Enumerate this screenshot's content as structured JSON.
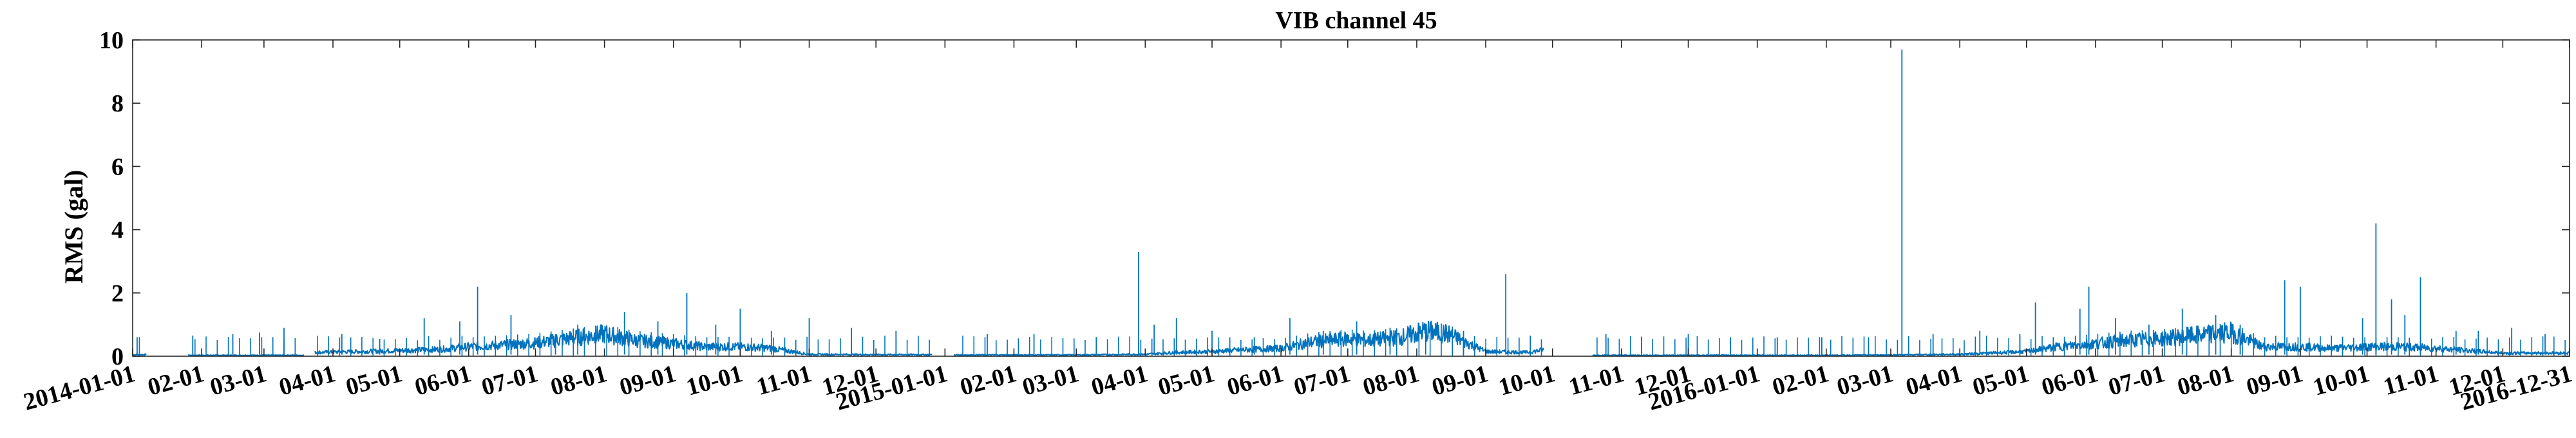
{
  "chart_data": {
    "type": "line",
    "title": "VIB channel 45",
    "xlabel": "",
    "ylabel": "RMS (gal)",
    "x_range": [
      "2014-01-01",
      "2016-12-31"
    ],
    "ylim": [
      0,
      10
    ],
    "y_ticks": [
      0,
      2,
      4,
      6,
      8,
      10
    ],
    "x_ticks": [
      {
        "date": "2014-01-01",
        "label": "2014-01-01"
      },
      {
        "date": "2014-02-01",
        "label": "02-01"
      },
      {
        "date": "2014-03-01",
        "label": "03-01"
      },
      {
        "date": "2014-04-01",
        "label": "04-01"
      },
      {
        "date": "2014-05-01",
        "label": "05-01"
      },
      {
        "date": "2014-06-01",
        "label": "06-01"
      },
      {
        "date": "2014-07-01",
        "label": "07-01"
      },
      {
        "date": "2014-08-01",
        "label": "08-01"
      },
      {
        "date": "2014-09-01",
        "label": "09-01"
      },
      {
        "date": "2014-10-01",
        "label": "10-01"
      },
      {
        "date": "2014-11-01",
        "label": "11-01"
      },
      {
        "date": "2014-12-01",
        "label": "12-01"
      },
      {
        "date": "2015-01-01",
        "label": "2015-01-01"
      },
      {
        "date": "2015-02-01",
        "label": "02-01"
      },
      {
        "date": "2015-03-01",
        "label": "03-01"
      },
      {
        "date": "2015-04-01",
        "label": "04-01"
      },
      {
        "date": "2015-05-01",
        "label": "05-01"
      },
      {
        "date": "2015-06-01",
        "label": "06-01"
      },
      {
        "date": "2015-07-01",
        "label": "07-01"
      },
      {
        "date": "2015-08-01",
        "label": "08-01"
      },
      {
        "date": "2015-09-01",
        "label": "09-01"
      },
      {
        "date": "2015-10-01",
        "label": "10-01"
      },
      {
        "date": "2015-11-01",
        "label": "11-01"
      },
      {
        "date": "2015-12-01",
        "label": "12-01"
      },
      {
        "date": "2016-01-01",
        "label": "2016-01-01"
      },
      {
        "date": "2016-02-01",
        "label": "02-01"
      },
      {
        "date": "2016-03-01",
        "label": "03-01"
      },
      {
        "date": "2016-04-01",
        "label": "04-01"
      },
      {
        "date": "2016-05-01",
        "label": "05-01"
      },
      {
        "date": "2016-06-01",
        "label": "06-01"
      },
      {
        "date": "2016-07-01",
        "label": "07-01"
      },
      {
        "date": "2016-08-01",
        "label": "08-01"
      },
      {
        "date": "2016-09-01",
        "label": "09-01"
      },
      {
        "date": "2016-10-01",
        "label": "10-01"
      },
      {
        "date": "2016-11-01",
        "label": "11-01"
      },
      {
        "date": "2016-12-01",
        "label": "12-01"
      },
      {
        "date": "2016-12-31",
        "label": "2016-12-31"
      }
    ],
    "grid": false,
    "legend": "none",
    "line_color": "#0072BD",
    "data_gaps": [
      [
        "2014-01-07",
        "2014-01-26"
      ],
      [
        "2014-03-19",
        "2014-03-24"
      ],
      [
        "2014-12-26",
        "2015-01-05"
      ],
      [
        "2015-09-27",
        "2015-10-19"
      ]
    ],
    "series": [
      {
        "baseline": {
          "x": [
            "2014-01-01",
            "2014-01-07",
            "2014-01-26",
            "2014-02-20",
            "2014-03-19",
            "2014-03-24",
            "2014-04-15",
            "2014-05-01",
            "2014-05-20",
            "2014-06-01",
            "2014-06-15",
            "2014-07-01",
            "2014-07-15",
            "2014-08-01",
            "2014-08-15",
            "2014-09-01",
            "2014-09-15",
            "2014-10-01",
            "2014-10-15",
            "2014-11-01",
            "2014-12-01",
            "2014-12-26",
            "2015-01-05",
            "2015-02-01",
            "2015-03-01",
            "2015-04-01",
            "2015-04-15",
            "2015-05-01",
            "2015-05-15",
            "2015-06-01",
            "2015-06-15",
            "2015-07-01",
            "2015-07-10",
            "2015-07-25",
            "2015-08-05",
            "2015-08-15",
            "2015-09-01",
            "2015-09-20",
            "2015-09-27",
            "2015-10-19",
            "2015-11-01",
            "2015-12-01",
            "2016-01-01",
            "2016-02-01",
            "2016-03-01",
            "2016-04-01",
            "2016-04-15",
            "2016-05-01",
            "2016-05-15",
            "2016-06-01",
            "2016-06-15",
            "2016-07-01",
            "2016-07-15",
            "2016-08-01",
            "2016-08-15",
            "2016-09-01",
            "2016-09-15",
            "2016-10-01",
            "2016-10-15",
            "2016-11-01",
            "2016-12-01",
            "2016-12-31"
          ],
          "y": [
            0.05,
            0.05,
            0.03,
            0.03,
            0.03,
            0.12,
            0.15,
            0.18,
            0.22,
            0.3,
            0.35,
            0.42,
            0.55,
            0.7,
            0.5,
            0.4,
            0.3,
            0.3,
            0.25,
            0.06,
            0.05,
            0.05,
            0.04,
            0.04,
            0.04,
            0.06,
            0.12,
            0.15,
            0.2,
            0.25,
            0.45,
            0.55,
            0.5,
            0.6,
            0.8,
            0.7,
            0.15,
            0.12,
            0.2,
            0.03,
            0.03,
            0.03,
            0.03,
            0.03,
            0.04,
            0.06,
            0.1,
            0.15,
            0.3,
            0.4,
            0.5,
            0.55,
            0.65,
            0.75,
            0.3,
            0.3,
            0.25,
            0.3,
            0.3,
            0.25,
            0.1,
            0.1
          ]
        },
        "spikes": {
          "x": [
            "2014-01-03",
            "2014-01-28",
            "2014-02-15",
            "2014-02-27",
            "2014-03-10",
            "2014-04-05",
            "2014-04-22",
            "2014-05-12",
            "2014-05-28",
            "2014-06-05",
            "2014-06-20",
            "2014-07-10",
            "2014-07-20",
            "2014-08-10",
            "2014-08-25",
            "2014-09-07",
            "2014-09-20",
            "2014-10-01",
            "2014-10-15",
            "2014-11-01",
            "2014-11-20",
            "2014-12-10",
            "2015-01-20",
            "2015-02-10",
            "2015-03-10",
            "2015-03-29",
            "2015-04-05",
            "2015-04-15",
            "2015-05-01",
            "2015-05-20",
            "2015-06-05",
            "2015-06-20",
            "2015-07-05",
            "2015-07-20",
            "2015-08-05",
            "2015-08-22",
            "2015-09-10",
            "2015-10-25",
            "2015-11-10",
            "2015-12-01",
            "2015-12-20",
            "2016-01-10",
            "2016-01-30",
            "2016-02-20",
            "2016-03-06",
            "2016-03-20",
            "2016-04-10",
            "2016-04-28",
            "2016-05-05",
            "2016-05-25",
            "2016-05-29",
            "2016-06-10",
            "2016-06-25",
            "2016-07-10",
            "2016-07-25",
            "2016-08-05",
            "2016-08-25",
            "2016-09-01",
            "2016-09-20",
            "2016-09-29",
            "2016-10-05",
            "2016-10-12",
            "2016-10-18",
            "2016-10-25",
            "2016-11-10",
            "2016-11-20",
            "2016-12-05",
            "2016-12-20"
          ],
          "y": [
            0.6,
            0.65,
            0.7,
            0.75,
            0.9,
            0.7,
            0.55,
            1.2,
            1.1,
            2.2,
            1.3,
            0.7,
            1.0,
            1.4,
            1.1,
            2.0,
            1.0,
            1.5,
            0.8,
            1.2,
            0.9,
            0.8,
            0.7,
            0.7,
            0.6,
            3.3,
            1.0,
            1.2,
            0.8,
            0.6,
            1.2,
            0.8,
            1.1,
            0.9,
            1.0,
            0.8,
            2.6,
            0.7,
            0.6,
            0.7,
            0.6,
            0.6,
            0.6,
            0.6,
            9.7,
            0.7,
            0.8,
            0.7,
            1.7,
            1.5,
            2.2,
            1.2,
            1.0,
            1.5,
            1.3,
            1.0,
            2.4,
            2.2,
            0.6,
            1.2,
            4.2,
            1.8,
            1.3,
            2.5,
            0.8,
            0.8,
            0.9,
            0.7
          ]
        }
      }
    ]
  }
}
